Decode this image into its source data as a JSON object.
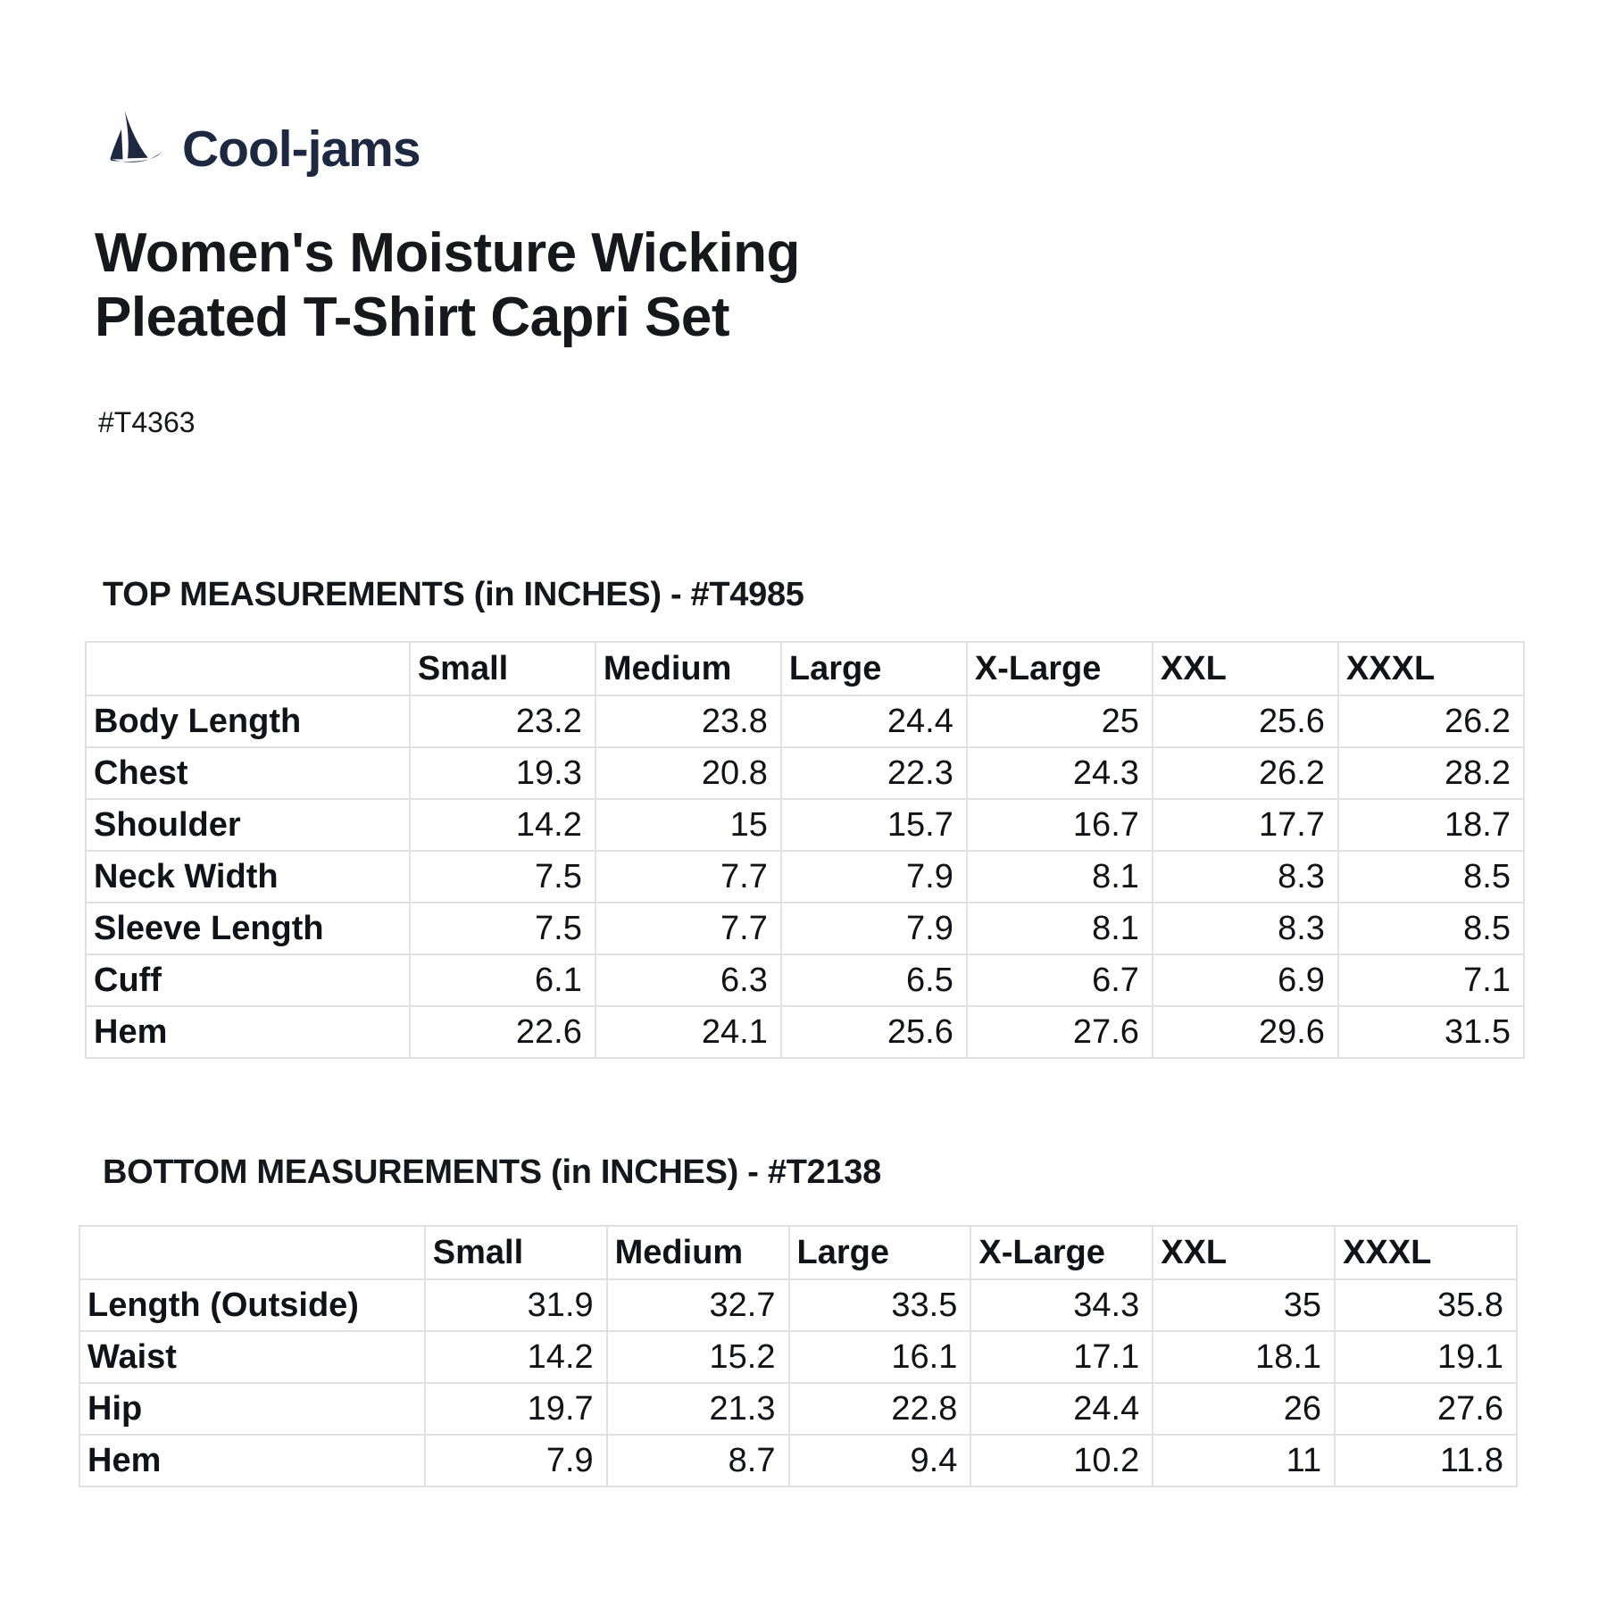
{
  "logo": {
    "brand": "Cool-jams",
    "icon": "sailboat-icon"
  },
  "title": "Women's Moisture Wicking Pleated T-Shirt Capri Set",
  "product_code": "#T4363",
  "sections": [
    {
      "heading": "TOP MEASUREMENTS (in INCHES) - #T4985",
      "table": {
        "columns": [
          "",
          "Small",
          "Medium",
          "Large",
          "X-Large",
          "XXL",
          "XXXL"
        ],
        "rows": [
          {
            "label": "Body Length",
            "values": [
              23.2,
              23.8,
              24.4,
              25,
              25.6,
              26.2
            ]
          },
          {
            "label": "Chest",
            "values": [
              19.3,
              20.8,
              22.3,
              24.3,
              26.2,
              28.2
            ]
          },
          {
            "label": "Shoulder",
            "values": [
              14.2,
              15,
              15.7,
              16.7,
              17.7,
              18.7
            ]
          },
          {
            "label": "Neck Width",
            "values": [
              7.5,
              7.7,
              7.9,
              8.1,
              8.3,
              8.5
            ]
          },
          {
            "label": "Sleeve Length",
            "values": [
              7.5,
              7.7,
              7.9,
              8.1,
              8.3,
              8.5
            ]
          },
          {
            "label": "Cuff",
            "values": [
              6.1,
              6.3,
              6.5,
              6.7,
              6.9,
              7.1
            ]
          },
          {
            "label": "Hem",
            "values": [
              22.6,
              24.1,
              25.6,
              27.6,
              29.6,
              31.5
            ]
          }
        ]
      }
    },
    {
      "heading": "BOTTOM MEASUREMENTS (in INCHES) - #T2138",
      "table": {
        "columns": [
          "",
          "Small",
          "Medium",
          "Large",
          "X-Large",
          "XXL",
          "XXXL"
        ],
        "rows": [
          {
            "label": "Length (Outside)",
            "values": [
              31.9,
              32.7,
              33.5,
              34.3,
              35,
              35.8
            ]
          },
          {
            "label": "Waist",
            "values": [
              14.2,
              15.2,
              16.1,
              17.1,
              18.1,
              19.1
            ]
          },
          {
            "label": "Hip",
            "values": [
              19.7,
              21.3,
              22.8,
              24.4,
              26,
              27.6
            ]
          },
          {
            "label": "Hem",
            "values": [
              7.9,
              8.7,
              9.4,
              10.2,
              11,
              11.8
            ]
          }
        ]
      }
    }
  ],
  "colors": {
    "brand_navy": "#1d2940",
    "text_black": "#15171c",
    "table_border": "#e1e1e1",
    "background": "#ffffff"
  }
}
